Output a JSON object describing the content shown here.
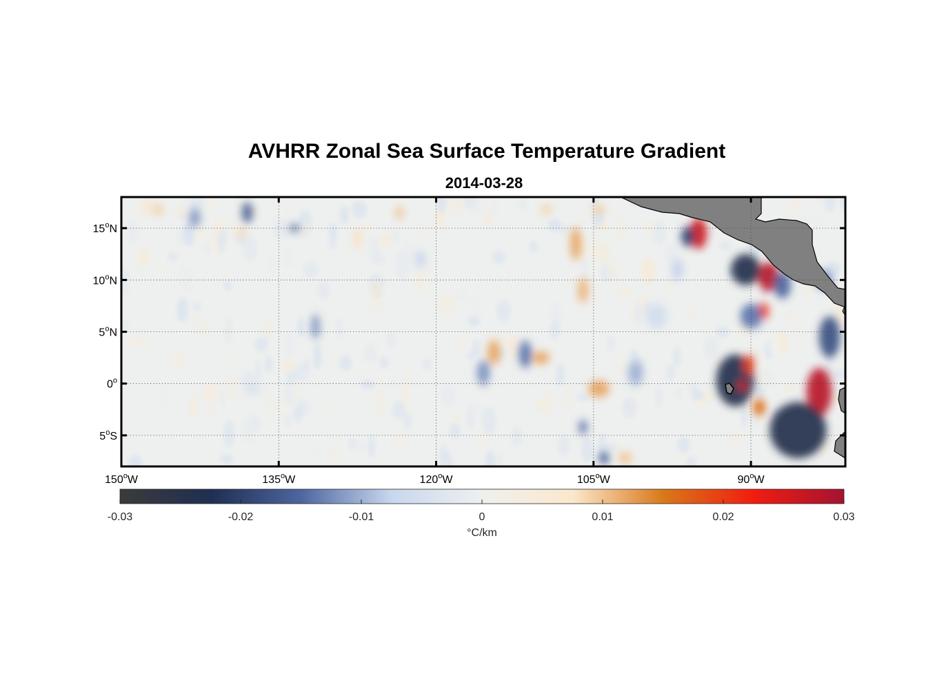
{
  "title": "AVHRR Zonal Sea Surface Temperature Gradient",
  "subtitle": "2014-03-28",
  "chart_data": {
    "type": "heatmap",
    "variable": "zonal SST gradient",
    "units_label": "°C/km",
    "lon_range": [
      -150,
      -81
    ],
    "lat_range": [
      -8,
      18
    ],
    "x_ticks": [
      {
        "value": -150,
        "num": "150",
        "hemi": "W"
      },
      {
        "value": -135,
        "num": "135",
        "hemi": "W"
      },
      {
        "value": -120,
        "num": "120",
        "hemi": "W"
      },
      {
        "value": -105,
        "num": "105",
        "hemi": "W"
      },
      {
        "value": -90,
        "num": "90",
        "hemi": "W"
      }
    ],
    "y_ticks": [
      {
        "value": 15,
        "num": "15",
        "hemi": "N"
      },
      {
        "value": 10,
        "num": "10",
        "hemi": "N"
      },
      {
        "value": 5,
        "num": "5",
        "hemi": "N"
      },
      {
        "value": 0,
        "num": "0",
        "hemi": ""
      },
      {
        "value": -5,
        "num": "5",
        "hemi": "S"
      }
    ],
    "colorbar": {
      "range": [
        -0.03,
        0.03
      ],
      "ticks": [
        -0.03,
        -0.02,
        -0.01,
        0,
        0.01,
        0.02,
        0.03
      ],
      "tick_labels": [
        "-0.03",
        "-0.02",
        "-0.01",
        "0",
        "0.01",
        "0.02",
        "0.03"
      ],
      "label": "°C/km"
    },
    "colormap": [
      "#3b3b3b",
      "#1f2f52",
      "#4d66a0",
      "#c8d7ee",
      "#eef0ef",
      "#fbe8cc",
      "#d9791a",
      "#f01d10",
      "#a51331"
    ],
    "land_color": "#808080",
    "features": [
      {
        "lon": -95.0,
        "lat": 14.5,
        "value": 0.026,
        "sx": 0.8,
        "sy": 1.5
      },
      {
        "lon": -96.0,
        "lat": 14.2,
        "value": -0.02,
        "sx": 0.6,
        "sy": 1.0
      },
      {
        "lon": -88.3,
        "lat": 10.3,
        "value": 0.028,
        "sx": 1.0,
        "sy": 1.4
      },
      {
        "lon": -90.5,
        "lat": 11.0,
        "value": -0.024,
        "sx": 1.4,
        "sy": 1.5
      },
      {
        "lon": -88.8,
        "lat": 7.0,
        "value": 0.02,
        "sx": 0.5,
        "sy": 0.8
      },
      {
        "lon": -90.0,
        "lat": 6.5,
        "value": -0.014,
        "sx": 1.0,
        "sy": 1.2
      },
      {
        "lon": -83.5,
        "lat": -0.8,
        "value": 0.028,
        "sx": 1.2,
        "sy": 2.3
      },
      {
        "lon": -85.5,
        "lat": -4.5,
        "value": -0.024,
        "sx": 2.7,
        "sy": 2.7
      },
      {
        "lon": -82.5,
        "lat": 4.5,
        "value": -0.018,
        "sx": 1.0,
        "sy": 2.0
      },
      {
        "lon": -91.5,
        "lat": 0.3,
        "value": -0.024,
        "sx": 1.8,
        "sy": 2.5
      },
      {
        "lon": -90.2,
        "lat": 1.8,
        "value": 0.02,
        "sx": 0.5,
        "sy": 1.0
      },
      {
        "lon": -90.8,
        "lat": -0.2,
        "value": 0.025,
        "sx": 0.4,
        "sy": 0.5
      },
      {
        "lon": -89.2,
        "lat": -2.3,
        "value": 0.016,
        "sx": 0.6,
        "sy": 0.8
      },
      {
        "lon": -87.0,
        "lat": 9.5,
        "value": -0.015,
        "sx": 0.8,
        "sy": 1.3
      },
      {
        "lon": -83.0,
        "lat": 10.0,
        "value": -0.012,
        "sx": 0.8,
        "sy": 1.0
      },
      {
        "lon": -106.7,
        "lat": 13.5,
        "value": 0.012,
        "sx": 0.5,
        "sy": 1.6
      },
      {
        "lon": -106.0,
        "lat": 9.0,
        "value": 0.011,
        "sx": 0.5,
        "sy": 1.2
      },
      {
        "lon": -114.5,
        "lat": 3.0,
        "value": 0.012,
        "sx": 0.6,
        "sy": 1.2
      },
      {
        "lon": -111.5,
        "lat": 2.8,
        "value": -0.014,
        "sx": 0.6,
        "sy": 1.3
      },
      {
        "lon": -110.0,
        "lat": 2.5,
        "value": 0.012,
        "sx": 0.8,
        "sy": 0.6
      },
      {
        "lon": -115.5,
        "lat": 1.0,
        "value": -0.012,
        "sx": 0.6,
        "sy": 1.2
      },
      {
        "lon": -104.5,
        "lat": -0.5,
        "value": 0.012,
        "sx": 1.0,
        "sy": 0.8
      },
      {
        "lon": -101.0,
        "lat": 1.0,
        "value": -0.01,
        "sx": 0.7,
        "sy": 1.2
      },
      {
        "lon": -102.0,
        "lat": -7.2,
        "value": 0.01,
        "sx": 0.6,
        "sy": 0.6
      },
      {
        "lon": -104.0,
        "lat": -7.2,
        "value": -0.016,
        "sx": 0.5,
        "sy": 0.6
      },
      {
        "lon": -106.0,
        "lat": -4.2,
        "value": -0.014,
        "sx": 0.4,
        "sy": 0.7
      },
      {
        "lon": -133.5,
        "lat": 15.0,
        "value": -0.016,
        "sx": 0.4,
        "sy": 0.4
      },
      {
        "lon": -138.0,
        "lat": 16.5,
        "value": -0.016,
        "sx": 0.5,
        "sy": 1.0
      },
      {
        "lon": -123.5,
        "lat": 16.5,
        "value": 0.01,
        "sx": 0.4,
        "sy": 0.6
      },
      {
        "lon": -127.5,
        "lat": 14.0,
        "value": 0.008,
        "sx": 0.4,
        "sy": 1.0
      },
      {
        "lon": -143.0,
        "lat": 16.0,
        "value": -0.012,
        "sx": 0.5,
        "sy": 0.9
      },
      {
        "lon": -146.5,
        "lat": 16.8,
        "value": 0.009,
        "sx": 0.5,
        "sy": 0.6
      },
      {
        "lon": -138.5,
        "lat": 14.5,
        "value": 0.009,
        "sx": 0.3,
        "sy": 0.5
      },
      {
        "lon": -148.0,
        "lat": 12.0,
        "value": 0.007,
        "sx": 0.3,
        "sy": 0.6
      },
      {
        "lon": -131.5,
        "lat": 5.5,
        "value": -0.012,
        "sx": 0.4,
        "sy": 1.2
      },
      {
        "lon": -109.5,
        "lat": 16.8,
        "value": 0.009,
        "sx": 0.5,
        "sy": 0.5
      },
      {
        "lon": -104.5,
        "lat": 16.8,
        "value": 0.009,
        "sx": 0.6,
        "sy": 0.5
      },
      {
        "lon": -99.0,
        "lat": 6.5,
        "value": -0.006,
        "sx": 1.0,
        "sy": 1.2
      },
      {
        "lon": -97.0,
        "lat": 11.0,
        "value": -0.008,
        "sx": 0.5,
        "sy": 1.0
      },
      {
        "lon": -137.5,
        "lat": -0.5,
        "value": -0.005,
        "sx": 0.8,
        "sy": 0.5
      },
      {
        "lon": -121.5,
        "lat": 12.0,
        "value": -0.008,
        "sx": 0.4,
        "sy": 0.8
      }
    ]
  }
}
